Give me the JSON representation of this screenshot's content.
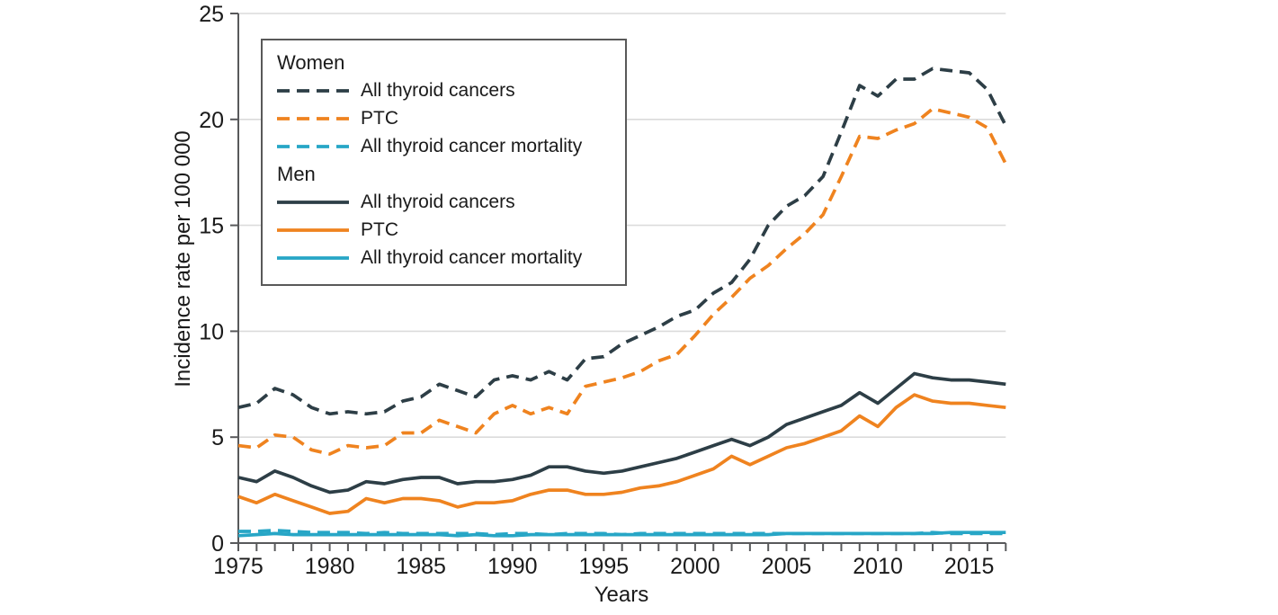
{
  "figure": {
    "background_color": "#FFFFFF",
    "text_color": "#1A1A1A",
    "axis_color": "#58595B",
    "gridline_color": "#DBDBDB"
  },
  "chart_data": {
    "type": "line",
    "title": "",
    "xlabel": "Years",
    "ylabel": "Incidence rate per 100 000",
    "x_start": 1975,
    "x_end": 2017,
    "x_tick_interval": 1,
    "x_tick_labels": [
      1975,
      1980,
      1985,
      1990,
      1995,
      2000,
      2005,
      2010,
      2015
    ],
    "ylim": [
      0,
      25
    ],
    "y_ticks": [
      0,
      5,
      10,
      15,
      20,
      25
    ],
    "grid": "horizontal-light",
    "legend_position": "inside-top-left",
    "colors": {
      "all_thyroid_cancers": "#2D3E46",
      "ptc": "#EF831F",
      "mortality": "#27A6C6"
    },
    "years": [
      1975,
      1976,
      1977,
      1978,
      1979,
      1980,
      1981,
      1982,
      1983,
      1984,
      1985,
      1986,
      1987,
      1988,
      1989,
      1990,
      1991,
      1992,
      1993,
      1994,
      1995,
      1996,
      1997,
      1998,
      1999,
      2000,
      2001,
      2002,
      2003,
      2004,
      2005,
      2006,
      2007,
      2008,
      2009,
      2010,
      2011,
      2012,
      2013,
      2014,
      2015,
      2016,
      2017
    ],
    "series": [
      {
        "group": "Women",
        "label": "All thyroid cancers",
        "style": "dashed",
        "color": "#2D3E46",
        "values": [
          6.4,
          6.6,
          7.3,
          7.0,
          6.4,
          6.1,
          6.2,
          6.1,
          6.2,
          6.7,
          6.9,
          7.5,
          7.2,
          6.9,
          7.7,
          7.9,
          7.7,
          8.1,
          7.7,
          8.7,
          8.8,
          9.4,
          9.8,
          10.2,
          10.7,
          11.0,
          11.8,
          12.3,
          13.4,
          15.0,
          15.9,
          16.4,
          17.3,
          19.4,
          21.6,
          21.1,
          21.9,
          21.9,
          22.4,
          22.3,
          22.2,
          21.4,
          19.7
        ]
      },
      {
        "group": "Women",
        "label": "PTC",
        "style": "dashed",
        "color": "#EF831F",
        "values": [
          4.6,
          4.5,
          5.1,
          5.0,
          4.4,
          4.2,
          4.6,
          4.5,
          4.6,
          5.2,
          5.2,
          5.8,
          5.5,
          5.2,
          6.1,
          6.5,
          6.1,
          6.4,
          6.1,
          7.4,
          7.6,
          7.8,
          8.1,
          8.6,
          8.9,
          9.8,
          10.8,
          11.6,
          12.5,
          13.1,
          13.9,
          14.6,
          15.5,
          17.3,
          19.2,
          19.1,
          19.5,
          19.8,
          20.5,
          20.3,
          20.1,
          19.6,
          17.9
        ]
      },
      {
        "group": "Women",
        "label": "All thyroid cancer mortality",
        "style": "dashed",
        "color": "#27A6C6",
        "values": [
          0.55,
          0.55,
          0.6,
          0.55,
          0.5,
          0.5,
          0.5,
          0.45,
          0.5,
          0.45,
          0.45,
          0.45,
          0.45,
          0.45,
          0.4,
          0.45,
          0.45,
          0.4,
          0.45,
          0.45,
          0.45,
          0.4,
          0.45,
          0.45,
          0.45,
          0.45,
          0.45,
          0.45,
          0.45,
          0.45,
          0.45,
          0.45,
          0.45,
          0.45,
          0.45,
          0.45,
          0.45,
          0.45,
          0.5,
          0.45,
          0.45,
          0.45,
          0.45
        ]
      },
      {
        "group": "Men",
        "label": "All thyroid cancers",
        "style": "solid",
        "color": "#2D3E46",
        "values": [
          3.1,
          2.9,
          3.4,
          3.1,
          2.7,
          2.4,
          2.5,
          2.9,
          2.8,
          3.0,
          3.1,
          3.1,
          2.8,
          2.9,
          2.9,
          3.0,
          3.2,
          3.6,
          3.6,
          3.4,
          3.3,
          3.4,
          3.6,
          3.8,
          4.0,
          4.3,
          4.6,
          4.9,
          4.6,
          5.0,
          5.6,
          5.9,
          6.2,
          6.5,
          7.1,
          6.6,
          7.3,
          8.0,
          7.8,
          7.7,
          7.7,
          7.6,
          7.5
        ]
      },
      {
        "group": "Men",
        "label": "PTC",
        "style": "solid",
        "color": "#EF831F",
        "values": [
          2.2,
          1.9,
          2.3,
          2.0,
          1.7,
          1.4,
          1.5,
          2.1,
          1.9,
          2.1,
          2.1,
          2.0,
          1.7,
          1.9,
          1.9,
          2.0,
          2.3,
          2.5,
          2.5,
          2.3,
          2.3,
          2.4,
          2.6,
          2.7,
          2.9,
          3.2,
          3.5,
          4.1,
          3.7,
          4.1,
          4.5,
          4.7,
          5.0,
          5.3,
          6.0,
          5.5,
          6.4,
          7.0,
          6.7,
          6.6,
          6.6,
          6.5,
          6.4
        ]
      },
      {
        "group": "Men",
        "label": "All thyroid cancer mortality",
        "style": "solid",
        "color": "#27A6C6",
        "values": [
          0.35,
          0.4,
          0.45,
          0.4,
          0.4,
          0.4,
          0.4,
          0.4,
          0.4,
          0.4,
          0.4,
          0.4,
          0.35,
          0.4,
          0.35,
          0.35,
          0.4,
          0.4,
          0.4,
          0.4,
          0.4,
          0.4,
          0.4,
          0.4,
          0.4,
          0.4,
          0.4,
          0.4,
          0.4,
          0.4,
          0.45,
          0.45,
          0.45,
          0.45,
          0.45,
          0.45,
          0.45,
          0.45,
          0.45,
          0.5,
          0.5,
          0.5,
          0.5
        ]
      }
    ],
    "legend": {
      "group_titles": [
        "Women",
        "Men"
      ]
    }
  }
}
